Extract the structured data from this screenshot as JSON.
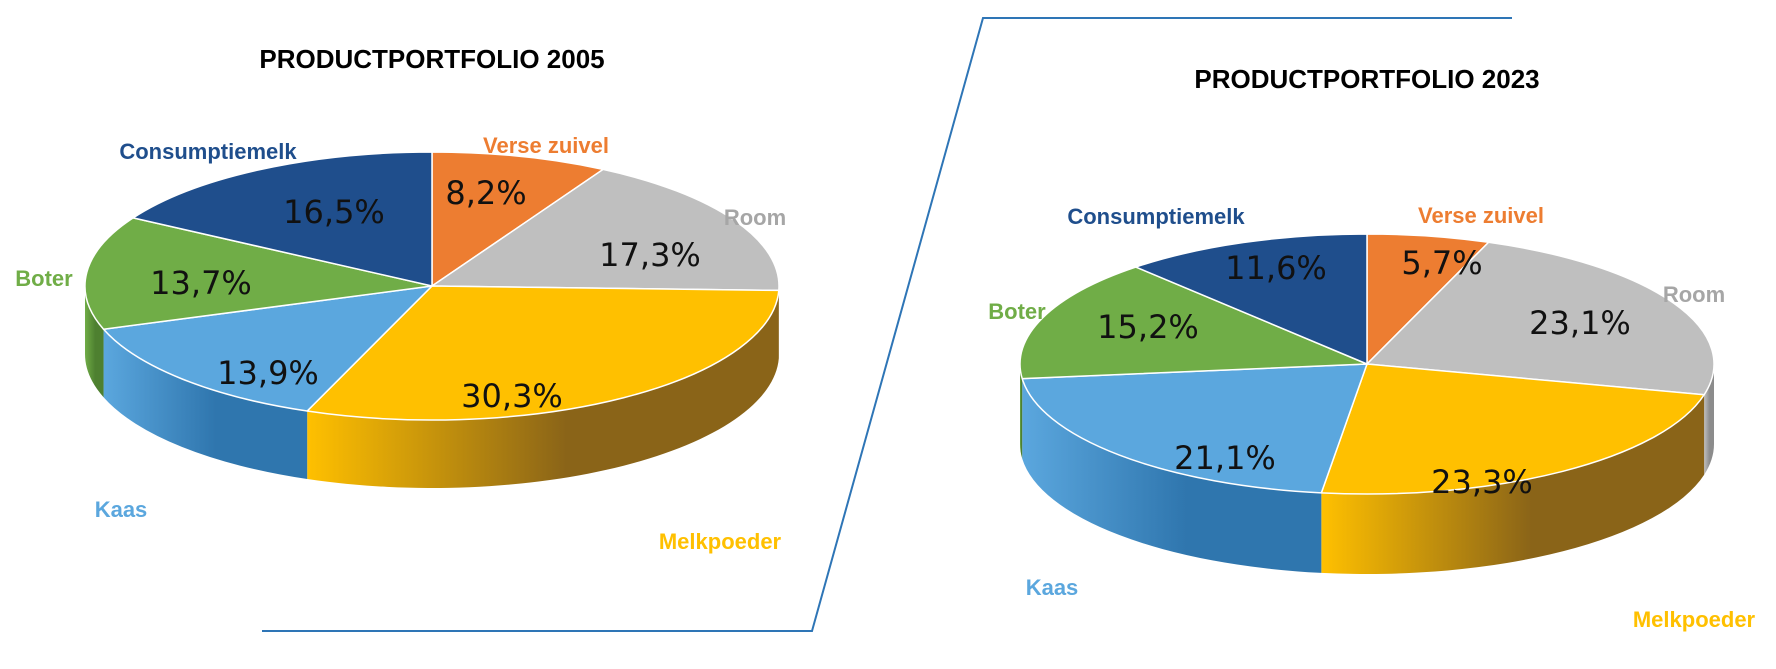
{
  "chart_data": [
    {
      "type": "pie",
      "title": "PRODUCTPORTFOLIO 2005",
      "value_format": "{v}%",
      "slices": [
        {
          "label": "Verse zuivel",
          "value": 8.2,
          "display": "8,2%"
        },
        {
          "label": "Room",
          "value": 17.3,
          "display": "17,3%"
        },
        {
          "label": "Melkpoeder",
          "value": 30.3,
          "display": "30,3%"
        },
        {
          "label": "Kaas",
          "value": 13.9,
          "display": "13,9%"
        },
        {
          "label": "Boter",
          "value": 13.7,
          "display": "13,7%"
        },
        {
          "label": "Consumptiemelk",
          "value": 16.5,
          "display": "16,5%"
        }
      ]
    },
    {
      "type": "pie",
      "title": "PRODUCTPORTFOLIO 2023",
      "value_format": "{v}%",
      "slices": [
        {
          "label": "Verse zuivel",
          "value": 5.7,
          "display": "5,7%"
        },
        {
          "label": "Room",
          "value": 23.1,
          "display": "23,1%"
        },
        {
          "label": "Melkpoeder",
          "value": 23.3,
          "display": "23,3%"
        },
        {
          "label": "Kaas",
          "value": 21.1,
          "display": "21,1%"
        },
        {
          "label": "Boter",
          "value": 15.2,
          "display": "15,2%"
        },
        {
          "label": "Consumptiemelk",
          "value": 11.6,
          "display": "11,6%"
        }
      ]
    }
  ],
  "colors": {
    "Verse zuivel": {
      "top": "#ED7D31",
      "side": "#B85A1E",
      "label": "#ED7D31"
    },
    "Room": {
      "top": "#BFBFBF",
      "side": "#8C8C8C",
      "label": "#A6A6A6"
    },
    "Melkpoeder": {
      "top": "#FFC000",
      "side": "#8A6418",
      "label": "#FFC000"
    },
    "Kaas": {
      "top": "#5BA7DE",
      "side": "#2F76AE",
      "label": "#5BA7DE"
    },
    "Boter": {
      "top": "#70AD47",
      "side": "#4E8030",
      "label": "#70AD47"
    },
    "Consumptiemelk": {
      "top": "#1F4E8C",
      "side": "#153763",
      "label": "#1F4E8C"
    }
  },
  "divider_color": "#2E75B6"
}
